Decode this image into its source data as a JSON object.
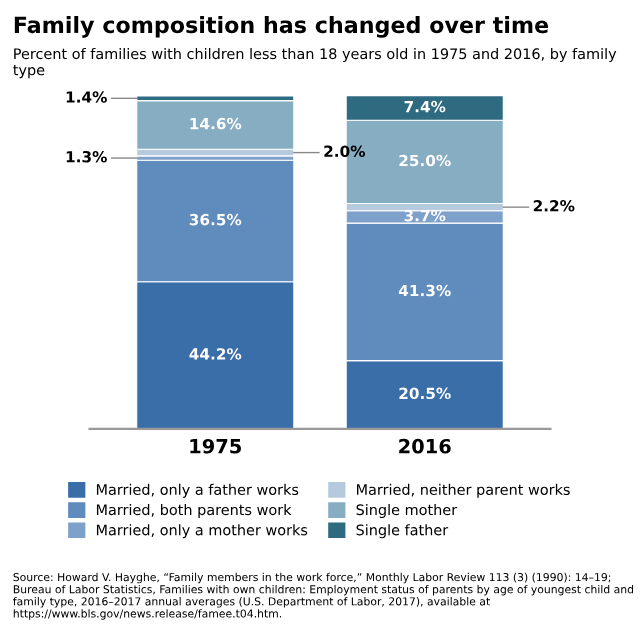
{
  "chart_data": {
    "type": "bar",
    "stacked": true,
    "title": "Family composition has changed over time",
    "subtitle": "Percent of families with children less than 18 years old in 1975 and 2016, by family type",
    "categories": [
      "1975",
      "2016"
    ],
    "series": [
      {
        "name": "Married, only a father works",
        "color": "#3a6ea8",
        "values": [
          44.2,
          20.5
        ],
        "value_labels": [
          "44.2%",
          "20.5%"
        ]
      },
      {
        "name": "Married, both parents work",
        "color": "#5f8bbd",
        "values": [
          36.5,
          41.3
        ],
        "value_labels": [
          "36.5%",
          "41.3%"
        ]
      },
      {
        "name": "Married, only a mother works",
        "color": "#7ea1cb",
        "values": [
          1.3,
          3.7
        ],
        "value_labels": [
          "1.3%",
          "3.7%"
        ]
      },
      {
        "name": "Married, neither parent works",
        "color": "#b6cade",
        "values": [
          2.0,
          2.2
        ],
        "value_labels": [
          "2.0%",
          "2.2%"
        ]
      },
      {
        "name": "Single mother",
        "color": "#86adc2",
        "values": [
          14.6,
          25.0
        ],
        "value_labels": [
          "14.6%",
          "25.0%"
        ]
      },
      {
        "name": "Single father",
        "color": "#2f6b80",
        "values": [
          1.4,
          7.4
        ],
        "value_labels": [
          "1.4%",
          "7.4%"
        ]
      }
    ],
    "ylim": [
      0,
      100
    ],
    "tick_labels": "x",
    "legend": "bottom",
    "grid": false,
    "annotations": [
      "Source: Howard V. Hayghe, “Family members in the work force,” Monthly Labor Review 113 (3) (1990): 14–19; Bureau of Labor Statistics, Families with own children: Employment status of parents by age of youngest child and family type, 2016–2017 annual averages (U.S. Department of Labor, 2017), available at https://www.bls.gov/news.release/famee.t04.htm."
    ]
  }
}
